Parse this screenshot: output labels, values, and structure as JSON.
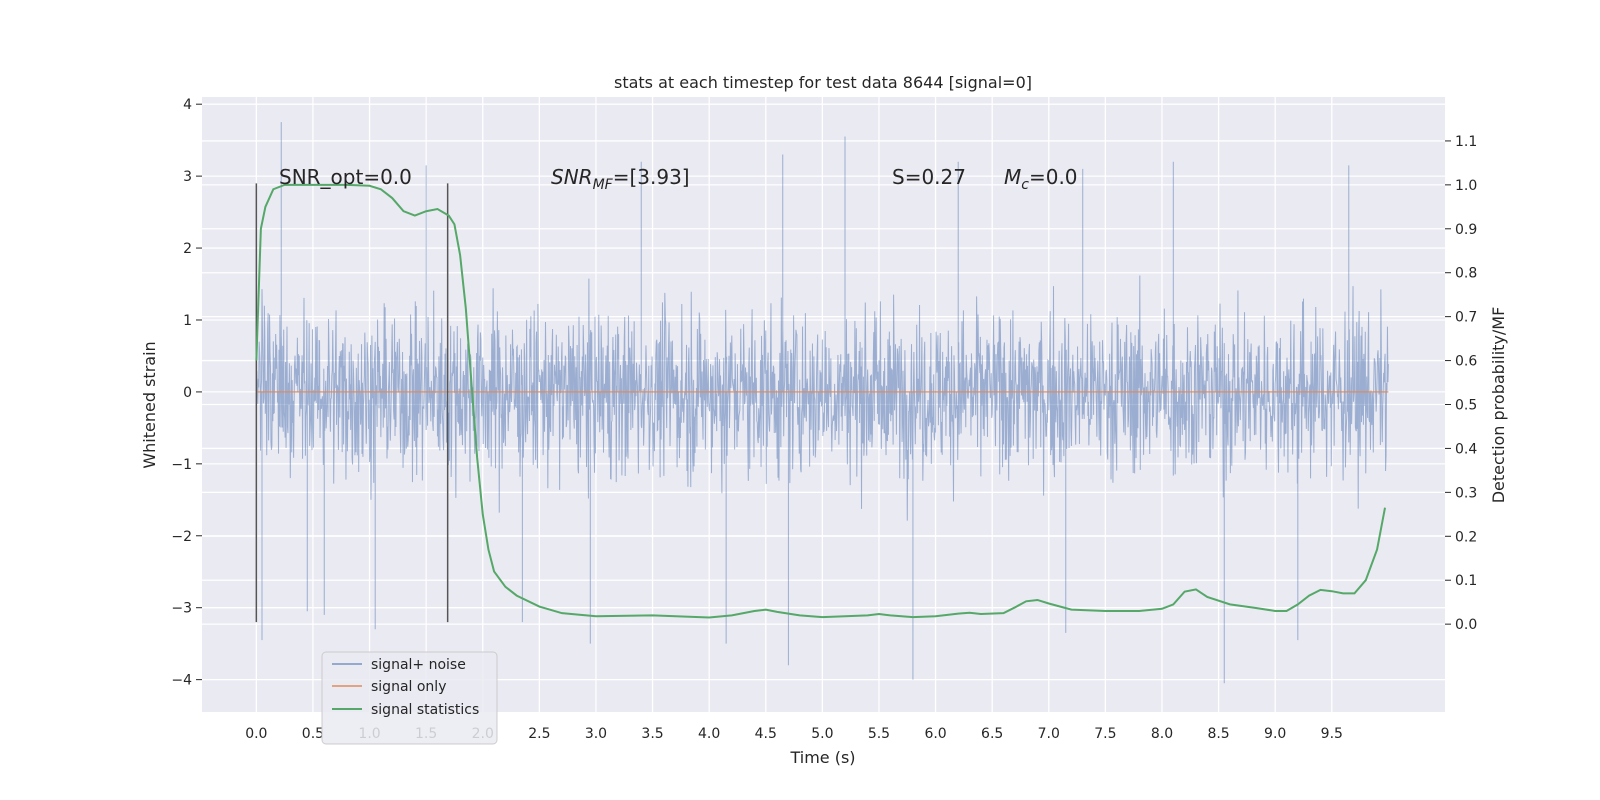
{
  "chart_data": {
    "type": "line",
    "title": "stats at each timestep for test data 8644 [signal=0]",
    "xlabel": "Time (s)",
    "ylabel": "Whitened strain",
    "ylabel_right": "Detection probability/MF",
    "xlim": [
      -0.48,
      10.5
    ],
    "ylim": [
      -4.45,
      4.1
    ],
    "ylim_right": [
      -0.2,
      1.2
    ],
    "x_ticks": [
      "0.0",
      "0.5",
      "1.0",
      "1.5",
      "2.0",
      "2.5",
      "3.0",
      "3.5",
      "4.0",
      "4.5",
      "5.0",
      "5.5",
      "6.0",
      "6.5",
      "7.0",
      "7.5",
      "8.0",
      "8.5",
      "9.0",
      "9.5"
    ],
    "y_ticks": [
      "4",
      "3",
      "2",
      "1",
      "0",
      "−1",
      "−2",
      "−3",
      "−4"
    ],
    "y_ticks_right": [
      "1.1",
      "1.0",
      "0.9",
      "0.8",
      "0.7",
      "0.6",
      "0.5",
      "0.4",
      "0.3",
      "0.2",
      "0.1",
      "0.0"
    ],
    "grid": true,
    "legend_position": "lower-left",
    "annotations": {
      "snr_opt": "SNR_opt=0.0",
      "snr_mf_base": "SNR",
      "snr_mf_sub": "MF",
      "snr_mf_value": "=[3.93]",
      "s_value": "S=0.27",
      "mc_base": "M",
      "mc_sub": "c",
      "mc_value": "=0.0"
    },
    "vertical_markers": [
      {
        "x": 0.0,
        "ymin": -3.2,
        "ymax": 2.9
      },
      {
        "x": 1.69,
        "ymin": -3.2,
        "ymax": 2.9
      }
    ],
    "series": [
      {
        "name": "signal+ noise",
        "color": "#4c72b0",
        "x_range": [
          0.0,
          10.0
        ],
        "typical_band": [
          -1.2,
          1.2
        ],
        "spikes": [
          [
            0.05,
            -3.45
          ],
          [
            0.22,
            3.75
          ],
          [
            0.45,
            -3.05
          ],
          [
            0.6,
            -3.1
          ],
          [
            1.05,
            -3.3
          ],
          [
            1.5,
            3.15
          ],
          [
            2.35,
            -3.2
          ],
          [
            2.95,
            -3.5
          ],
          [
            3.4,
            3.2
          ],
          [
            4.15,
            -3.5
          ],
          [
            4.65,
            3.3
          ],
          [
            4.7,
            -3.8
          ],
          [
            5.2,
            3.55
          ],
          [
            5.8,
            -4.0
          ],
          [
            6.2,
            3.2
          ],
          [
            7.15,
            -3.35
          ],
          [
            7.3,
            3.1
          ],
          [
            8.1,
            3.2
          ],
          [
            8.55,
            -4.05
          ],
          [
            9.2,
            -3.45
          ],
          [
            9.65,
            3.15
          ]
        ]
      },
      {
        "name": "signal only",
        "color": "#dd8452",
        "x": [
          0.0,
          10.0
        ],
        "y": [
          0.0,
          0.0
        ]
      },
      {
        "name": "signal statistics",
        "color": "#55a868",
        "axis": "right",
        "x": [
          0.0,
          0.04,
          0.08,
          0.15,
          0.25,
          0.4,
          0.6,
          0.8,
          1.0,
          1.1,
          1.2,
          1.3,
          1.4,
          1.5,
          1.6,
          1.7,
          1.75,
          1.8,
          1.85,
          1.9,
          1.95,
          2.0,
          2.05,
          2.1,
          2.2,
          2.3,
          2.5,
          2.7,
          3.0,
          3.5,
          4.0,
          4.2,
          4.4,
          4.5,
          4.6,
          4.8,
          5.0,
          5.2,
          5.4,
          5.5,
          5.6,
          5.8,
          6.0,
          6.2,
          6.3,
          6.4,
          6.6,
          6.7,
          6.8,
          6.9,
          7.0,
          7.2,
          7.5,
          7.8,
          8.0,
          8.1,
          8.2,
          8.3,
          8.4,
          8.6,
          8.8,
          9.0,
          9.1,
          9.2,
          9.3,
          9.4,
          9.5,
          9.6,
          9.7,
          9.8,
          9.9,
          9.97
        ],
        "y": [
          0.6,
          0.9,
          0.95,
          0.99,
          1.0,
          1.0,
          1.0,
          1.0,
          0.998,
          0.99,
          0.97,
          0.94,
          0.93,
          0.94,
          0.945,
          0.93,
          0.91,
          0.84,
          0.72,
          0.55,
          0.38,
          0.25,
          0.17,
          0.12,
          0.085,
          0.065,
          0.04,
          0.025,
          0.018,
          0.02,
          0.015,
          0.02,
          0.03,
          0.033,
          0.028,
          0.02,
          0.016,
          0.018,
          0.02,
          0.023,
          0.02,
          0.016,
          0.018,
          0.024,
          0.026,
          0.023,
          0.025,
          0.038,
          0.052,
          0.055,
          0.047,
          0.033,
          0.03,
          0.03,
          0.035,
          0.045,
          0.074,
          0.079,
          0.062,
          0.045,
          0.038,
          0.03,
          0.03,
          0.045,
          0.065,
          0.078,
          0.075,
          0.07,
          0.07,
          0.1,
          0.17,
          0.265
        ]
      }
    ]
  }
}
